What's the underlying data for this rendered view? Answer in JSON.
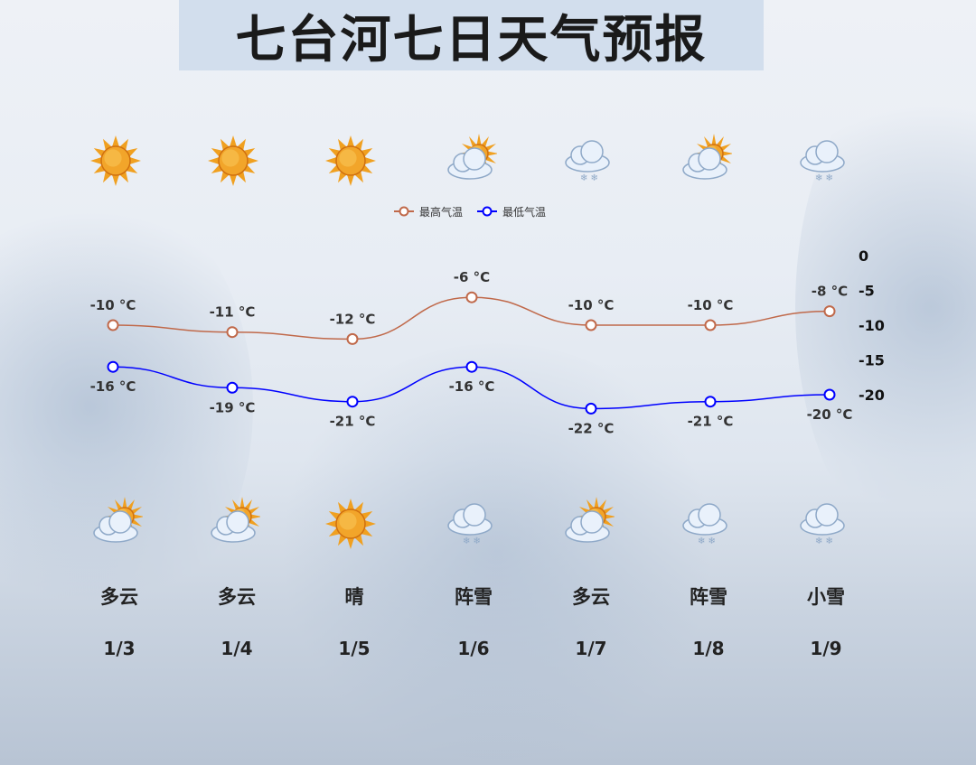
{
  "title": "七台河七日天气预报",
  "days": [
    {
      "date": "1/3",
      "condition": "多云",
      "top_icon": "sun-icon",
      "bottom_icon": "partly-cloudy-icon"
    },
    {
      "date": "1/4",
      "condition": "多云",
      "top_icon": "sun-icon",
      "bottom_icon": "partly-cloudy-icon"
    },
    {
      "date": "1/5",
      "condition": "晴",
      "top_icon": "sun-icon",
      "bottom_icon": "sun-icon"
    },
    {
      "date": "1/6",
      "condition": "阵雪",
      "top_icon": "partly-cloudy-icon",
      "bottom_icon": "snow-cloud-icon"
    },
    {
      "date": "1/7",
      "condition": "多云",
      "top_icon": "snow-cloud-icon",
      "bottom_icon": "partly-cloudy-icon"
    },
    {
      "date": "1/8",
      "condition": "阵雪",
      "top_icon": "partly-cloudy-icon",
      "bottom_icon": "snow-cloud-icon"
    },
    {
      "date": "1/9",
      "condition": "小雪",
      "top_icon": "snow-cloud-icon",
      "bottom_icon": "snow-cloud-icon"
    }
  ],
  "chart_data": {
    "type": "line",
    "x": [
      "1/3",
      "1/4",
      "1/5",
      "1/6",
      "1/7",
      "1/8",
      "1/9"
    ],
    "series": [
      {
        "name": "最高气温",
        "values": [
          -10,
          -11,
          -12,
          -6,
          -10,
          -10,
          -8
        ],
        "color": "#c0694a"
      },
      {
        "name": "最低气温",
        "values": [
          -16,
          -19,
          -21,
          -16,
          -22,
          -21,
          -20
        ],
        "color": "#0000ff"
      }
    ],
    "unit": "°C",
    "yticks": [
      0,
      -5,
      -10,
      -15,
      -20
    ],
    "ylim": [
      -20,
      0
    ],
    "y_axis_position": "right",
    "legend": "top-center",
    "smooth": true,
    "grid": false
  }
}
